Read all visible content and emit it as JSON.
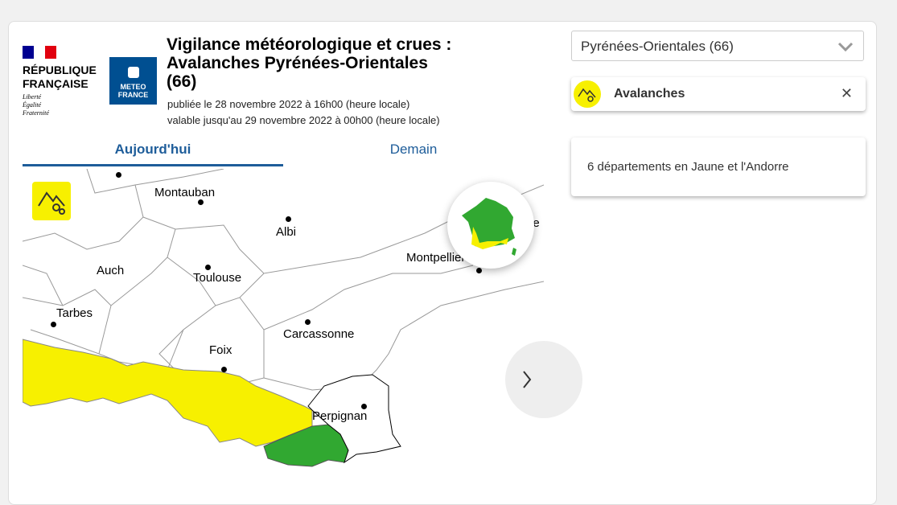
{
  "header": {
    "republic_line1": "RÉPUBLIQUE",
    "republic_line2": "FRANÇAISE",
    "motto": [
      "Liberté",
      "Égalité",
      "Fraternité"
    ],
    "meteo_logo": [
      "METEO",
      "FRANCE"
    ],
    "title": "Vigilance météorologique et crues : Avalanches Pyrénées-Orientales (66)",
    "published": "publiée le 28 novembre 2022 à 16h00 (heure locale)",
    "valid": "valable jusqu'au 29 novembre 2022 à 00h00 (heure locale)"
  },
  "tabs": [
    {
      "label": "Aujourd'hui",
      "active": true
    },
    {
      "label": "Demain",
      "active": false
    }
  ],
  "map": {
    "cities": [
      "Montauban",
      "Albi",
      "Auch",
      "Toulouse",
      "Montpellier",
      "Tarbes",
      "Carcassonne",
      "Foix",
      "Perpignan"
    ],
    "partial_label": "ne",
    "risk_icon": "avalanche-icon",
    "colors": {
      "yellow": "#f7f000",
      "green": "#31a831"
    }
  },
  "sidebar": {
    "department_select": "Pyrénées-Orientales (66)",
    "filter_chip": "Avalanches",
    "info": "6 départements en Jaune et l'Andorre"
  }
}
